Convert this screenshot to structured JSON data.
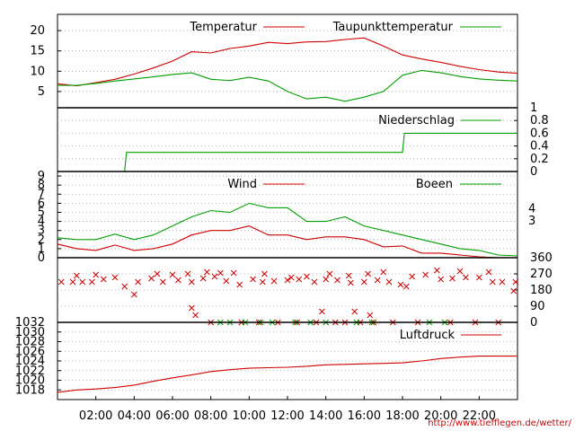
{
  "colors": {
    "red": "#d00000",
    "green": "#00a000",
    "grid": "#9a9a9a",
    "axis": "#000000"
  },
  "source_url": "http://www.tiefflegen.de/wetter/",
  "chart_data": [
    {
      "type": "line",
      "panel": "temperature",
      "legend_placement": "top",
      "x": [
        0,
        1,
        2,
        3,
        4,
        5,
        6,
        7,
        8,
        9,
        10,
        11,
        12,
        13,
        14,
        15,
        16,
        17,
        18,
        19,
        20,
        21,
        22,
        23,
        24
      ],
      "ylim": [
        1,
        24
      ],
      "yticks": [
        5,
        10,
        15,
        20
      ],
      "grid": true,
      "series": [
        {
          "name": "Temperatur",
          "color": "#d00000",
          "values": [
            6.9,
            6.4,
            7.2,
            8.0,
            9.3,
            10.8,
            12.5,
            14.8,
            14.5,
            15.6,
            16.2,
            17.1,
            16.8,
            17.2,
            17.3,
            17.8,
            18.2,
            16.2,
            14.0,
            13.0,
            12.2,
            11.2,
            10.4,
            9.8,
            9.5
          ]
        },
        {
          "name": "Taupunkttemperatur",
          "color": "#00a000",
          "values": [
            6.5,
            6.5,
            7.0,
            7.6,
            8.1,
            8.6,
            9.2,
            9.6,
            8.0,
            7.7,
            8.5,
            7.6,
            5.0,
            3.2,
            3.6,
            2.6,
            3.6,
            5.0,
            9.0,
            10.2,
            9.6,
            8.7,
            8.1,
            7.8,
            7.6
          ]
        }
      ]
    },
    {
      "type": "line",
      "panel": "precipitation",
      "legend_placement": "top",
      "x": [
        0,
        3.5,
        3.6,
        18.0,
        18.1,
        24
      ],
      "ylim": [
        0,
        1
      ],
      "yticks": [
        0,
        0.2,
        0.4,
        0.6,
        0.8,
        1
      ],
      "grid": true,
      "series": [
        {
          "name": "Niederschlag",
          "color": "#00a000",
          "values": [
            0,
            0,
            0.3,
            0.3,
            0.6,
            0.6
          ]
        }
      ]
    },
    {
      "type": "line",
      "panel": "wind",
      "legend_placement": "top",
      "x": [
        0,
        1,
        2,
        3,
        4,
        5,
        6,
        7,
        8,
        9,
        10,
        11,
        12,
        13,
        14,
        15,
        16,
        17,
        18,
        19,
        20,
        21,
        22,
        23,
        24
      ],
      "ylim": [
        0,
        9.5
      ],
      "yticks_left": [
        0,
        1,
        2,
        3,
        4,
        5,
        6,
        7,
        8,
        9
      ],
      "yticks_right": [
        3,
        4
      ],
      "grid": true,
      "series": [
        {
          "name": "Wind",
          "color": "#d00000",
          "values": [
            1.5,
            1.0,
            0.8,
            1.4,
            0.8,
            1.0,
            1.5,
            2.5,
            3.0,
            3.0,
            3.5,
            2.5,
            2.5,
            2.0,
            2.3,
            2.3,
            2.0,
            1.2,
            1.3,
            0.5,
            0.5,
            0.3,
            0.1,
            0,
            0
          ]
        },
        {
          "name": "Boeen",
          "color": "#00a000",
          "values": [
            2.2,
            2.0,
            2.0,
            2.6,
            2.0,
            2.5,
            3.5,
            4.5,
            5.2,
            5.0,
            6.0,
            5.5,
            5.5,
            4.0,
            4.0,
            4.5,
            3.5,
            3.0,
            2.5,
            2.0,
            1.5,
            1.0,
            0.8,
            0.3,
            0.2
          ]
        }
      ]
    },
    {
      "type": "scatter",
      "panel": "wind_direction",
      "ylim": [
        0,
        360
      ],
      "yticks": [
        0,
        90,
        180,
        270,
        360
      ],
      "grid": true,
      "series": [
        {
          "name": "",
          "color": "#d00000",
          "x": [
            0.2,
            0.8,
            1.3,
            1.8,
            2.4,
            3.0,
            3.5,
            4.2,
            4.9,
            5.5,
            6.3,
            7.0,
            7.6,
            8.2,
            8.8,
            9.5,
            10.2,
            10.7,
            11.3,
            12.0,
            12.6,
            13.4,
            14.0,
            14.6,
            15.3,
            16.0,
            16.7,
            17.3,
            17.9,
            18.5,
            19.2,
            20.0,
            20.6,
            21.3,
            22.0,
            22.7,
            23.2,
            23.8,
            7.0,
            7.2,
            8.0,
            9.6,
            10.5,
            11.5,
            12.5,
            13.5,
            14.5,
            15.0,
            15.8,
            16.5,
            17.5,
            18.8,
            20.5,
            21.8,
            23.0,
            4.0,
            13.8,
            15.5,
            16.3,
            1.0,
            2.0,
            5.2,
            6.0,
            6.8,
            7.8,
            8.5,
            9.2,
            10.8,
            12.2,
            13.0,
            14.2,
            15.2,
            16.2,
            17.0,
            18.2,
            19.8,
            21.0,
            22.5,
            23.9
          ],
          "values": [
            225,
            225,
            225,
            225,
            240,
            250,
            200,
            225,
            245,
            225,
            235,
            225,
            245,
            255,
            230,
            210,
            240,
            225,
            230,
            235,
            240,
            225,
            240,
            235,
            220,
            225,
            235,
            225,
            210,
            255,
            265,
            240,
            245,
            250,
            250,
            225,
            225,
            175,
            80,
            40,
            0,
            0,
            0,
            0,
            0,
            0,
            0,
            0,
            0,
            0,
            0,
            0,
            0,
            0,
            0,
            155,
            60,
            60,
            40,
            260,
            265,
            270,
            265,
            270,
            280,
            275,
            275,
            270,
            250,
            255,
            270,
            260,
            270,
            280,
            200,
            290,
            285,
            280,
            225
          ]
        },
        {
          "name": "",
          "color": "#00a000",
          "x": [
            8.5,
            9.0,
            9.8,
            10.6,
            11.2,
            12.4,
            13.2,
            14.0,
            15.6,
            16.4,
            19.4,
            20.2
          ],
          "values": [
            0,
            0,
            0,
            0,
            0,
            0,
            0,
            0,
            0,
            0,
            0,
            0
          ]
        }
      ]
    },
    {
      "type": "line",
      "panel": "pressure",
      "legend_placement": "top",
      "x": [
        0,
        1,
        2,
        3,
        4,
        5,
        6,
        7,
        8,
        9,
        10,
        11,
        12,
        13,
        14,
        15,
        16,
        17,
        18,
        19,
        20,
        21,
        22,
        23,
        24
      ],
      "ylim": [
        1016,
        1032
      ],
      "yticks": [
        1018,
        1020,
        1022,
        1024,
        1026,
        1028,
        1030,
        1032
      ],
      "grid": true,
      "series": [
        {
          "name": "Luftdruck",
          "color": "#d00000",
          "values": [
            1017.5,
            1018.0,
            1018.2,
            1018.5,
            1019.0,
            1019.8,
            1020.5,
            1021.1,
            1021.8,
            1022.2,
            1022.5,
            1022.6,
            1022.7,
            1022.9,
            1023.2,
            1023.3,
            1023.4,
            1023.5,
            1023.6,
            1024.0,
            1024.5,
            1024.8,
            1025.0,
            1025.0,
            1025.0
          ]
        }
      ]
    }
  ],
  "x_axis": {
    "ticks": [
      "02:00",
      "04:00",
      "06:00",
      "08:00",
      "10:00",
      "12:00",
      "14:00",
      "16:00",
      "18:00",
      "20:00",
      "22:00"
    ],
    "tick_hours": [
      2,
      4,
      6,
      8,
      10,
      12,
      14,
      16,
      18,
      20,
      22
    ],
    "range_hours": [
      0,
      24
    ]
  }
}
